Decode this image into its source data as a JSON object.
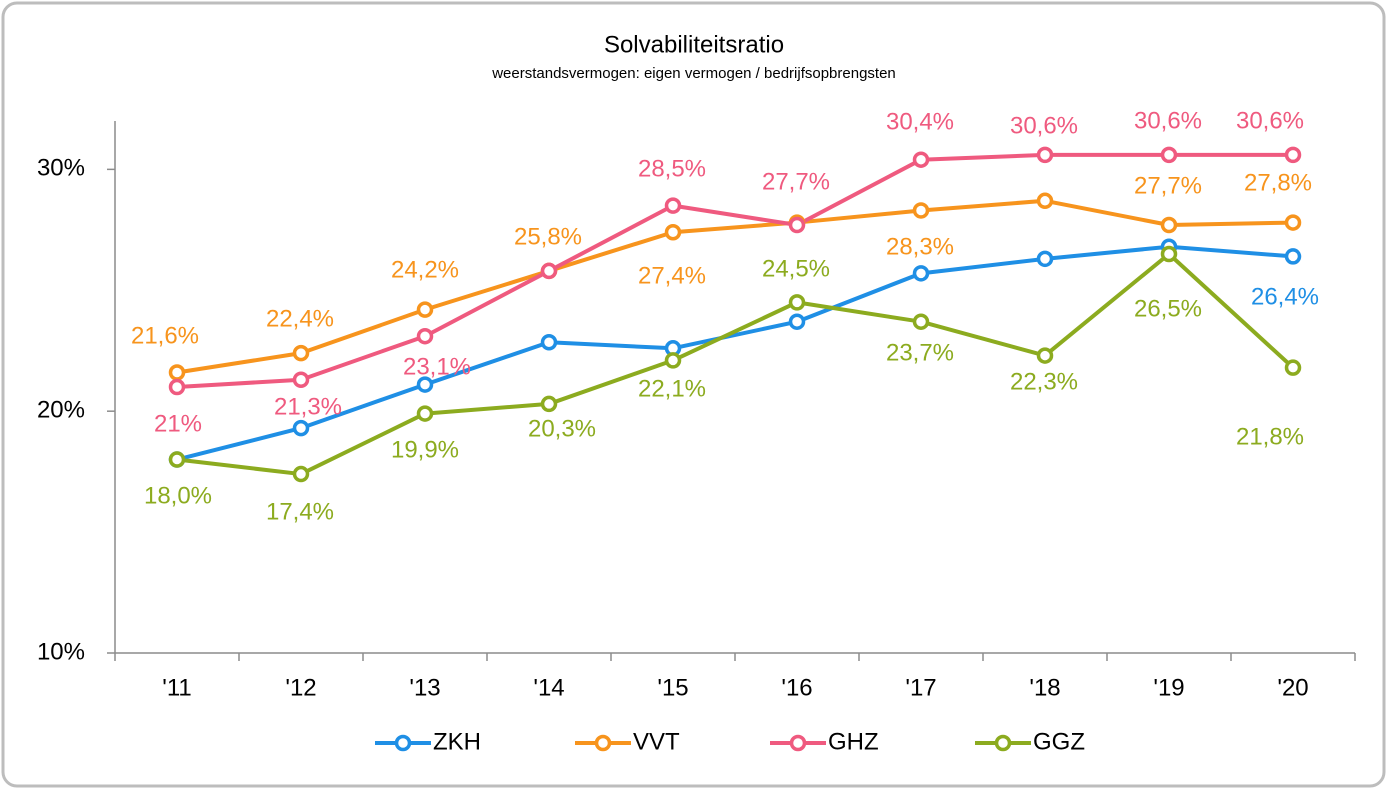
{
  "chart_data": {
    "type": "line",
    "title": "Solvabiliteitsratio",
    "subtitle": "weerstandsvermogen: eigen vermogen / bedrijfsopbrengsten",
    "categories": [
      "'11",
      "'12",
      "'13",
      "'14",
      "'15",
      "'16",
      "'17",
      "'18",
      "'19",
      "'20"
    ],
    "ylim": [
      10,
      32
    ],
    "yticks": [
      {
        "value": 10,
        "label": "10%"
      },
      {
        "value": 20,
        "label": "20%"
      },
      {
        "value": 30,
        "label": "30%"
      }
    ],
    "legend": "bottom",
    "series": [
      {
        "name": "ZKH",
        "color": "#1f8fe5",
        "values": [
          18.0,
          19.3,
          21.1,
          22.85,
          22.6,
          23.7,
          25.7,
          26.3,
          26.8,
          26.4
        ],
        "value_labels": [
          null,
          null,
          null,
          null,
          null,
          null,
          null,
          null,
          null,
          "26,4%"
        ]
      },
      {
        "name": "VVT",
        "color": "#f7941d",
        "values": [
          21.6,
          22.4,
          24.2,
          25.8,
          27.4,
          27.8,
          28.3,
          28.7,
          27.7,
          27.8
        ],
        "value_labels": [
          "21,6%",
          "22,4%",
          "24,2%",
          "25,8%",
          "27,4%",
          null,
          "28,3%",
          null,
          "27,7%",
          "27,8%"
        ]
      },
      {
        "name": "GHZ",
        "color": "#ef5a7f",
        "values": [
          21,
          21.3,
          23.1,
          25.8,
          28.5,
          27.7,
          30.4,
          30.6,
          30.6,
          30.6
        ],
        "value_labels": [
          "21%",
          "21,3%",
          "23,1%",
          null,
          "28,5%",
          "27,7%",
          "30,4%",
          "30,6%",
          "30,6%",
          "30,6%"
        ]
      },
      {
        "name": "GGZ",
        "color": "#8cab1f",
        "values": [
          18.0,
          17.4,
          19.9,
          20.3,
          22.1,
          24.5,
          23.7,
          22.3,
          26.5,
          21.8
        ],
        "value_labels": [
          "18,0%",
          "17,4%",
          "19,9%",
          "20,3%",
          "22,1%",
          "24,5%",
          "23,7%",
          "22,3%",
          "26,5%",
          "21,8%"
        ]
      }
    ]
  }
}
